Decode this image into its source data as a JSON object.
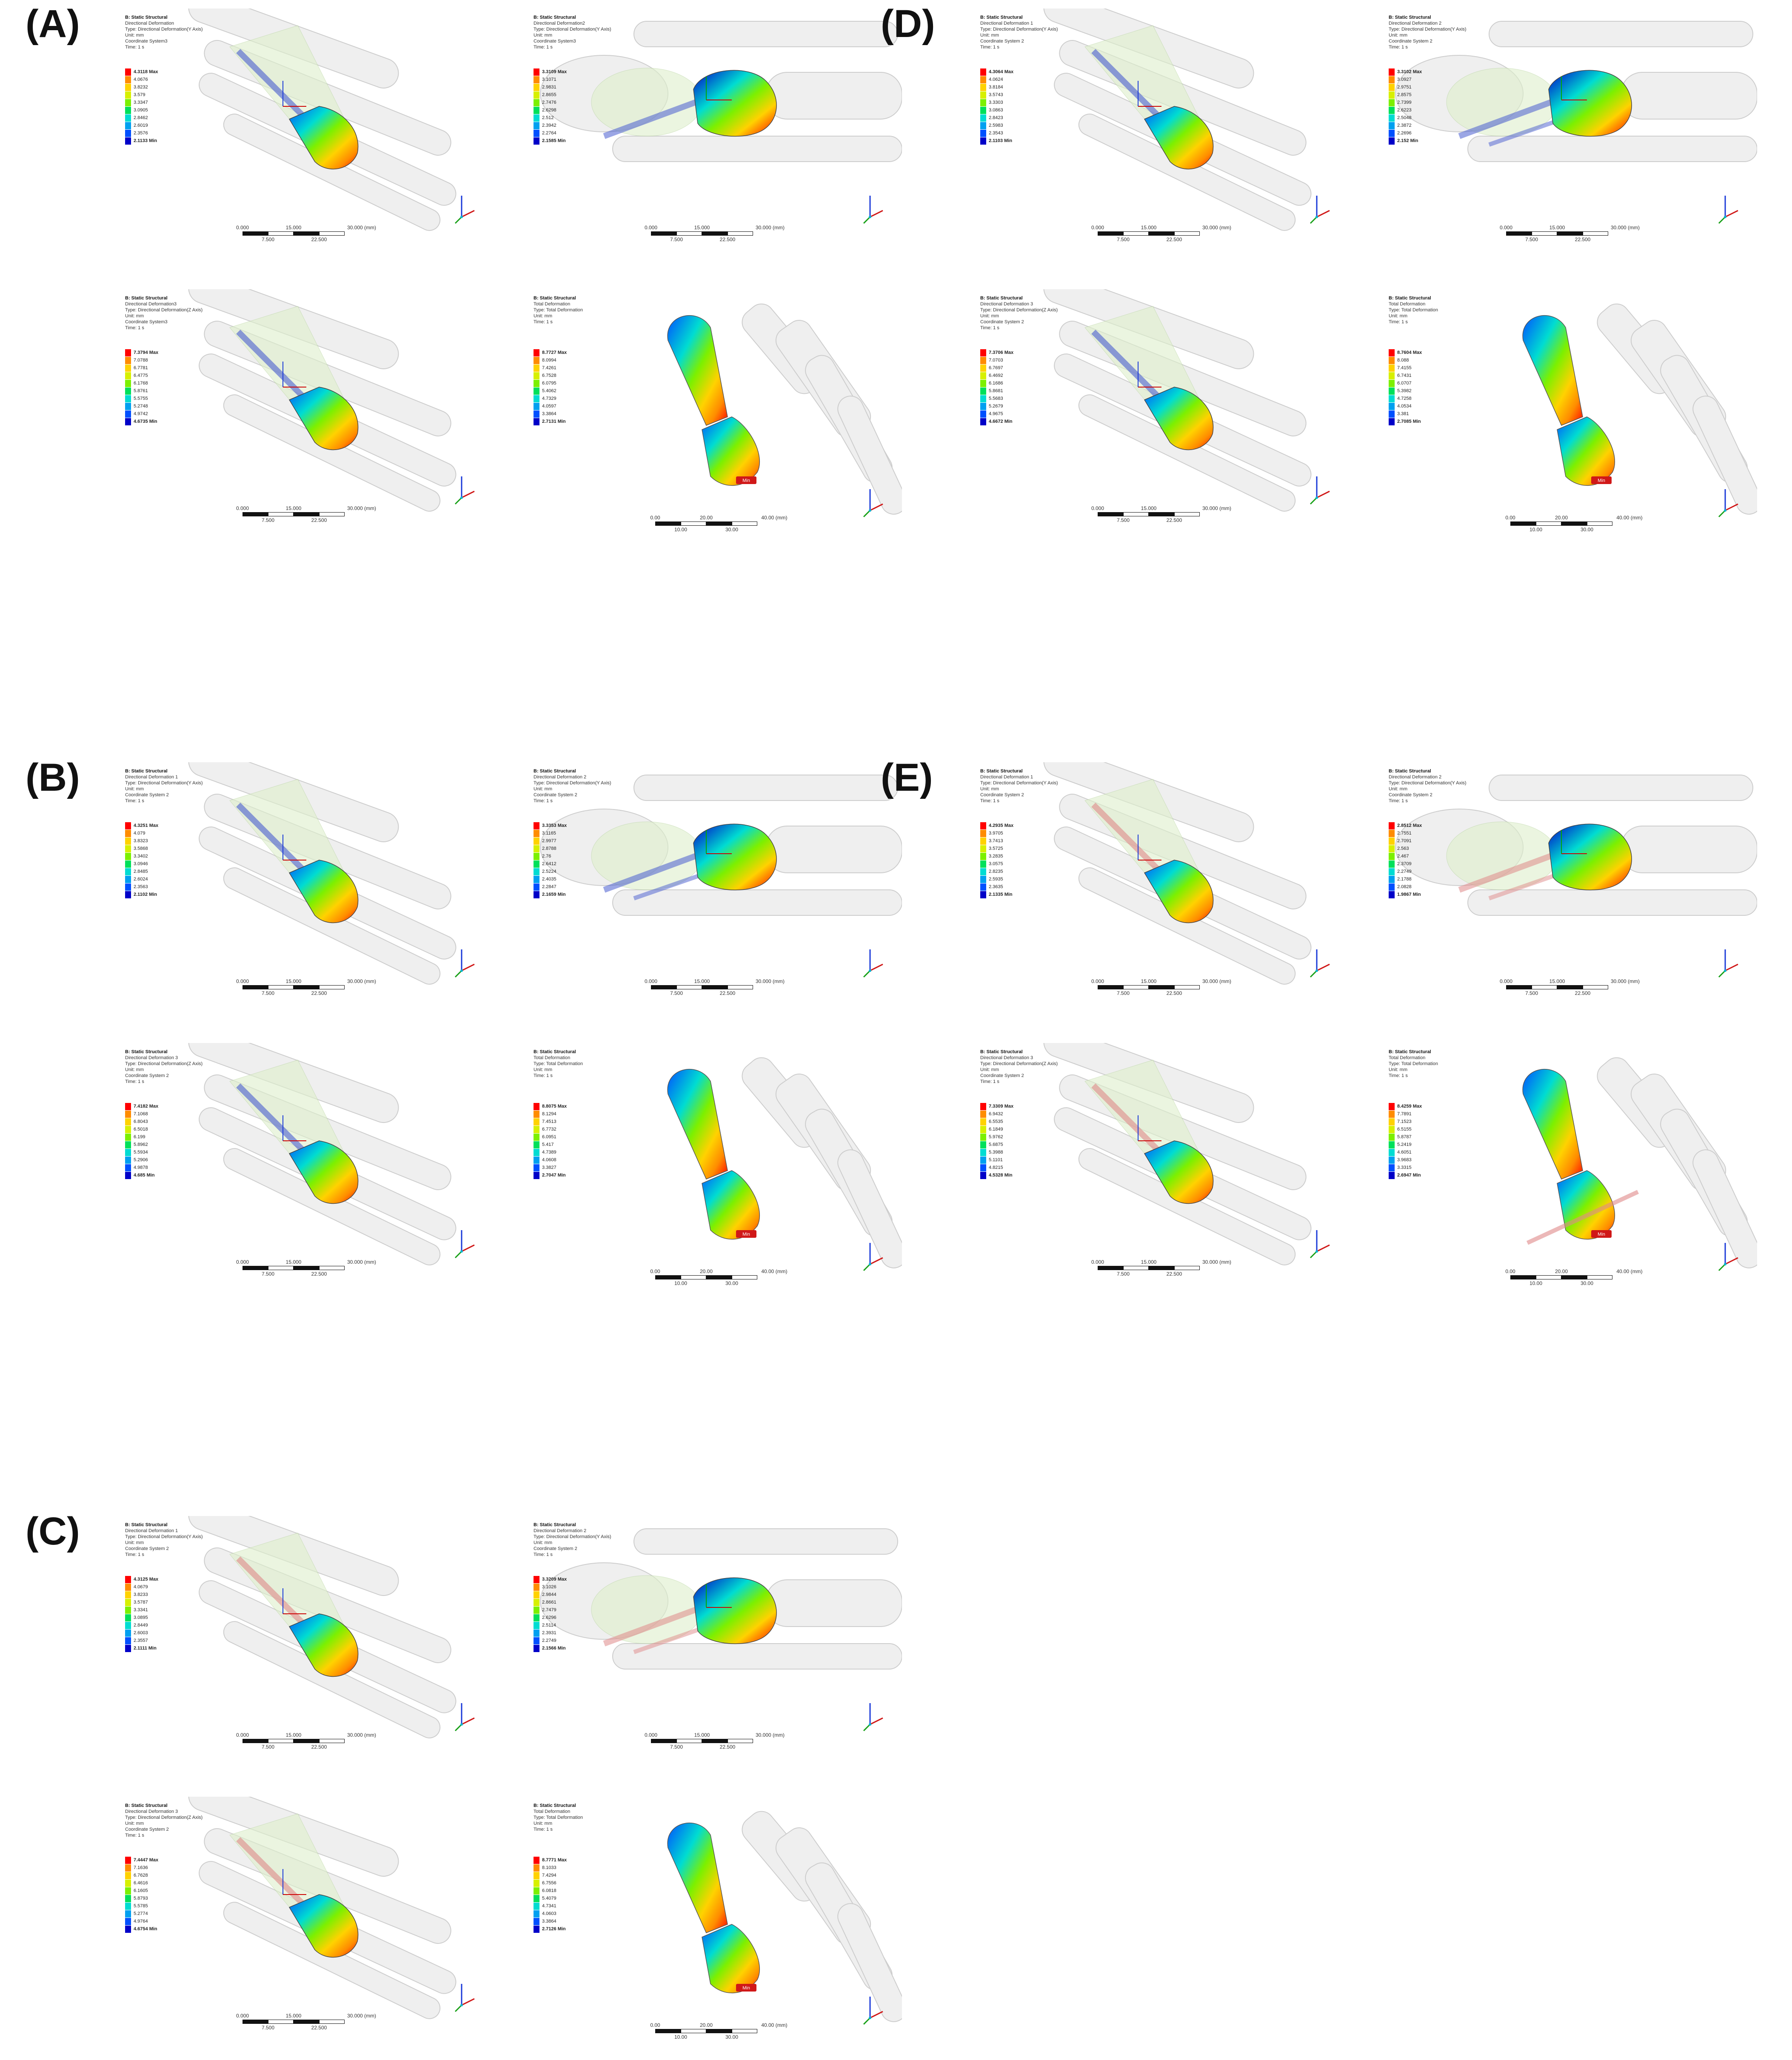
{
  "groups": [
    {
      "label": "(A)",
      "panels": [
        {
          "kind": "dir",
          "body": "Directional Deformation",
          "type": "Type: Directional Deformation(Y Axis)",
          "unit": "Unit: mm",
          "coord": "Coordinate System3",
          "time": "Time: 1 s",
          "legend": [
            "4.3118 Max",
            "4.0676",
            "3.8232",
            "3.579",
            "3.3347",
            "3.0905",
            "2.8462",
            "2.6019",
            "2.3576",
            "2.1133 Min"
          ]
        },
        {
          "kind": "dir2",
          "body": "Directional Deformation2",
          "type": "Type: Directional Deformation(Y Axis)",
          "unit": "Unit: mm",
          "coord": "Coordinate System3",
          "time": "Time: 1 s",
          "legend": [
            "3.3109 Max",
            "3.1071",
            "2.9831",
            "2.8655",
            "2.7476",
            "2.6298",
            "2.512",
            "2.3942",
            "2.2764",
            "2.1585 Min"
          ]
        },
        {
          "kind": "dir",
          "body": "Directional Deformation3",
          "type": "Type: Directional Deformation(Z Axis)",
          "unit": "Unit: mm",
          "coord": "Coordinate System3",
          "time": "Time: 1 s",
          "legend": [
            "7.3794 Max",
            "7.0788",
            "6.7781",
            "6.4775",
            "6.1768",
            "5.8761",
            "5.5755",
            "5.2748",
            "4.9742",
            "4.6735 Min"
          ]
        },
        {
          "kind": "total",
          "body": "Total Deformation",
          "type": "Type: Total Deformation",
          "unit": "Unit: mm",
          "coord": "",
          "time": "Time: 1 s",
          "legend": [
            "8.7727 Max",
            "8.0994",
            "7.4261",
            "6.7528",
            "6.0795",
            "5.4062",
            "4.7329",
            "4.0597",
            "3.3864",
            "2.7131 Min"
          ]
        }
      ]
    },
    {
      "label": "(D)",
      "panels": [
        {
          "kind": "dir",
          "body": "Directional Deformation 1",
          "type": "Type: Directional Deformation(Y Axis)",
          "unit": "Unit: mm",
          "coord": "Coordinate System 2",
          "time": "Time: 1 s",
          "legend": [
            "4.3064 Max",
            "4.0624",
            "3.8184",
            "3.5743",
            "3.3303",
            "3.0863",
            "2.8423",
            "2.5983",
            "2.3543",
            "2.1103 Min"
          ]
        },
        {
          "kind": "dir2",
          "body": "Directional Deformation 2",
          "type": "Type: Directional Deformation(Y Axis)",
          "unit": "Unit: mm",
          "coord": "Coordinate System 2",
          "time": "Time: 1 s",
          "legend": [
            "3.3102 Max",
            "3.0927",
            "2.9751",
            "2.8575",
            "2.7399",
            "2.6223",
            "2.5048",
            "2.3872",
            "2.2696",
            "2.152 Min"
          ]
        },
        {
          "kind": "dir",
          "body": "Directional Deformation 3",
          "type": "Type: Directional Deformation(Z Axis)",
          "unit": "Unit: mm",
          "coord": "Coordinate System 2",
          "time": "Time: 1 s",
          "legend": [
            "7.3706 Max",
            "7.0703",
            "6.7697",
            "6.4692",
            "6.1686",
            "5.8681",
            "5.5683",
            "5.2679",
            "4.9675",
            "4.6672 Min"
          ]
        },
        {
          "kind": "total",
          "body": "Total Deformation",
          "type": "Type: Total Deformation",
          "unit": "Unit: mm",
          "coord": "",
          "time": "Time: 1 s",
          "legend": [
            "8.7604 Max",
            "8.088",
            "7.4155",
            "6.7431",
            "6.0707",
            "5.3982",
            "4.7258",
            "4.0534",
            "3.381",
            "2.7085 Min"
          ]
        }
      ]
    },
    {
      "label": "(B)",
      "panels": [
        {
          "kind": "dir",
          "body": "Directional Deformation 1",
          "type": "Type: Directional Deformation(Y Axis)",
          "unit": "Unit: mm",
          "coord": "Coordinate System 2",
          "time": "Time: 1 s",
          "legend": [
            "4.3251 Max",
            "4.079",
            "3.8323",
            "3.5868",
            "3.3402",
            "3.0946",
            "2.8485",
            "2.6024",
            "2.3563",
            "2.1102 Min"
          ]
        },
        {
          "kind": "dir2",
          "body": "Directional Deformation 2",
          "type": "Type: Directional Deformation(Y Axis)",
          "unit": "Unit: mm",
          "coord": "Coordinate System 2",
          "time": "Time: 1 s",
          "legend": [
            "3.3353 Max",
            "3.1165",
            "2.9977",
            "2.8788",
            "2.76",
            "2.6412",
            "2.5224",
            "2.4035",
            "2.2847",
            "2.1659 Min"
          ]
        },
        {
          "kind": "dir",
          "body": "Directional Deformation 3",
          "type": "Type: Directional Deformation(Z Axis)",
          "unit": "Unit: mm",
          "coord": "Coordinate System 2",
          "time": "Time: 1 s",
          "legend": [
            "7.4182 Max",
            "7.1068",
            "6.8043",
            "6.5018",
            "6.199",
            "5.8962",
            "5.5934",
            "5.2906",
            "4.9878",
            "4.685 Min"
          ]
        },
        {
          "kind": "total",
          "body": "Total Deformation",
          "type": "Type: Total Deformation",
          "unit": "Unit: mm",
          "coord": "",
          "time": "Time: 1 s",
          "legend": [
            "8.8075 Max",
            "8.1294",
            "7.4513",
            "6.7732",
            "6.0951",
            "5.417",
            "4.7389",
            "4.0608",
            "3.3827",
            "2.7047 Min"
          ]
        }
      ]
    },
    {
      "label": "(E)",
      "panels": [
        {
          "kind": "dir",
          "body": "Directional Deformation 1",
          "type": "Type: Directional Deformation(Y Axis)",
          "unit": "Unit: mm",
          "coord": "Coordinate System 2",
          "time": "Time: 1 s",
          "legend": [
            "4.2935 Max",
            "3.9705",
            "3.7413",
            "3.5725",
            "3.2835",
            "3.0575",
            "2.8235",
            "2.5935",
            "2.3635",
            "2.1335 Min"
          ]
        },
        {
          "kind": "dir2",
          "body": "Directional Deformation 2",
          "type": "Type: Directional Deformation(Y Axis)",
          "unit": "Unit: mm",
          "coord": "Coordinate System 2",
          "time": "Time: 1 s",
          "legend": [
            "2.8512 Max",
            "2.7551",
            "2.7091",
            "2.563",
            "2.467",
            "2.3709",
            "2.2749",
            "2.1788",
            "2.0828",
            "1.9867 Min"
          ]
        },
        {
          "kind": "dir",
          "body": "Directional Deformation 3",
          "type": "Type: Directional Deformation(Z Axis)",
          "unit": "Unit: mm",
          "coord": "Coordinate System 2",
          "time": "Time: 1 s",
          "legend": [
            "7.3309 Max",
            "6.9432",
            "6.5535",
            "6.1849",
            "5.9762",
            "5.6875",
            "5.3988",
            "5.1101",
            "4.8215",
            "4.5328 Min"
          ]
        },
        {
          "kind": "total",
          "body": "Total Deformation",
          "type": "Type: Total Deformation",
          "unit": "Unit: mm",
          "coord": "",
          "time": "Time: 1 s",
          "legend": [
            "8.4259 Max",
            "7.7891",
            "7.1523",
            "6.5155",
            "5.8787",
            "5.2419",
            "4.6051",
            "3.9683",
            "3.3315",
            "2.6947 Min"
          ]
        }
      ]
    },
    {
      "label": "(C)",
      "panels": [
        {
          "kind": "dir",
          "body": "Directional Deformation 1",
          "type": "Type: Directional Deformation(Y Axis)",
          "unit": "Unit: mm",
          "coord": "Coordinate System 2",
          "time": "Time: 1 s",
          "legend": [
            "4.3125 Max",
            "4.0679",
            "3.8233",
            "3.5787",
            "3.3341",
            "3.0895",
            "2.8449",
            "2.6003",
            "2.3557",
            "2.1111 Min"
          ]
        },
        {
          "kind": "dir2",
          "body": "Directional Deformation 2",
          "type": "Type: Directional Deformation(Y Axis)",
          "unit": "Unit: mm",
          "coord": "Coordinate System 2",
          "time": "Time: 1 s",
          "legend": [
            "3.3209 Max",
            "3.1026",
            "2.9844",
            "2.8661",
            "2.7479",
            "2.6296",
            "2.5114",
            "2.3931",
            "2.2749",
            "2.1566 Min"
          ]
        },
        {
          "kind": "dir",
          "body": "Directional Deformation 3",
          "type": "Type: Directional Deformation(Z Axis)",
          "unit": "Unit: mm",
          "coord": "Coordinate System 2",
          "time": "Time: 1 s",
          "legend": [
            "7.4447 Max",
            "7.1636",
            "6.7628",
            "6.4616",
            "6.1605",
            "5.8793",
            "5.5785",
            "5.2774",
            "4.9764",
            "4.6754 Min"
          ]
        },
        {
          "kind": "total",
          "body": "Total Deformation",
          "type": "Type: Total Deformation",
          "unit": "Unit: mm",
          "coord": "",
          "time": "Time: 1 s",
          "legend": [
            "8.7771 Max",
            "8.1033",
            "7.4294",
            "6.7556",
            "6.0818",
            "5.4079",
            "4.7341",
            "4.0603",
            "3.3864",
            "2.7126 Min"
          ]
        }
      ]
    }
  ],
  "common": {
    "header": "B: Static Structural",
    "min_tag": "Min",
    "scale_small": {
      "top": [
        "0.000",
        "15.000",
        "30.000 (mm)"
      ],
      "bottom": [
        "7.500",
        "22.500"
      ]
    },
    "scale_large": {
      "top": [
        "0.00",
        "20.00",
        "40.00 (mm)"
      ],
      "bottom": [
        "10.00",
        "30.00"
      ]
    },
    "legend_colors": [
      "#ff0000",
      "#ff8c00",
      "#ffd200",
      "#d7f000",
      "#7cf000",
      "#00e05a",
      "#00dcd2",
      "#00a0f0",
      "#0050ff",
      "#0000c8"
    ]
  }
}
